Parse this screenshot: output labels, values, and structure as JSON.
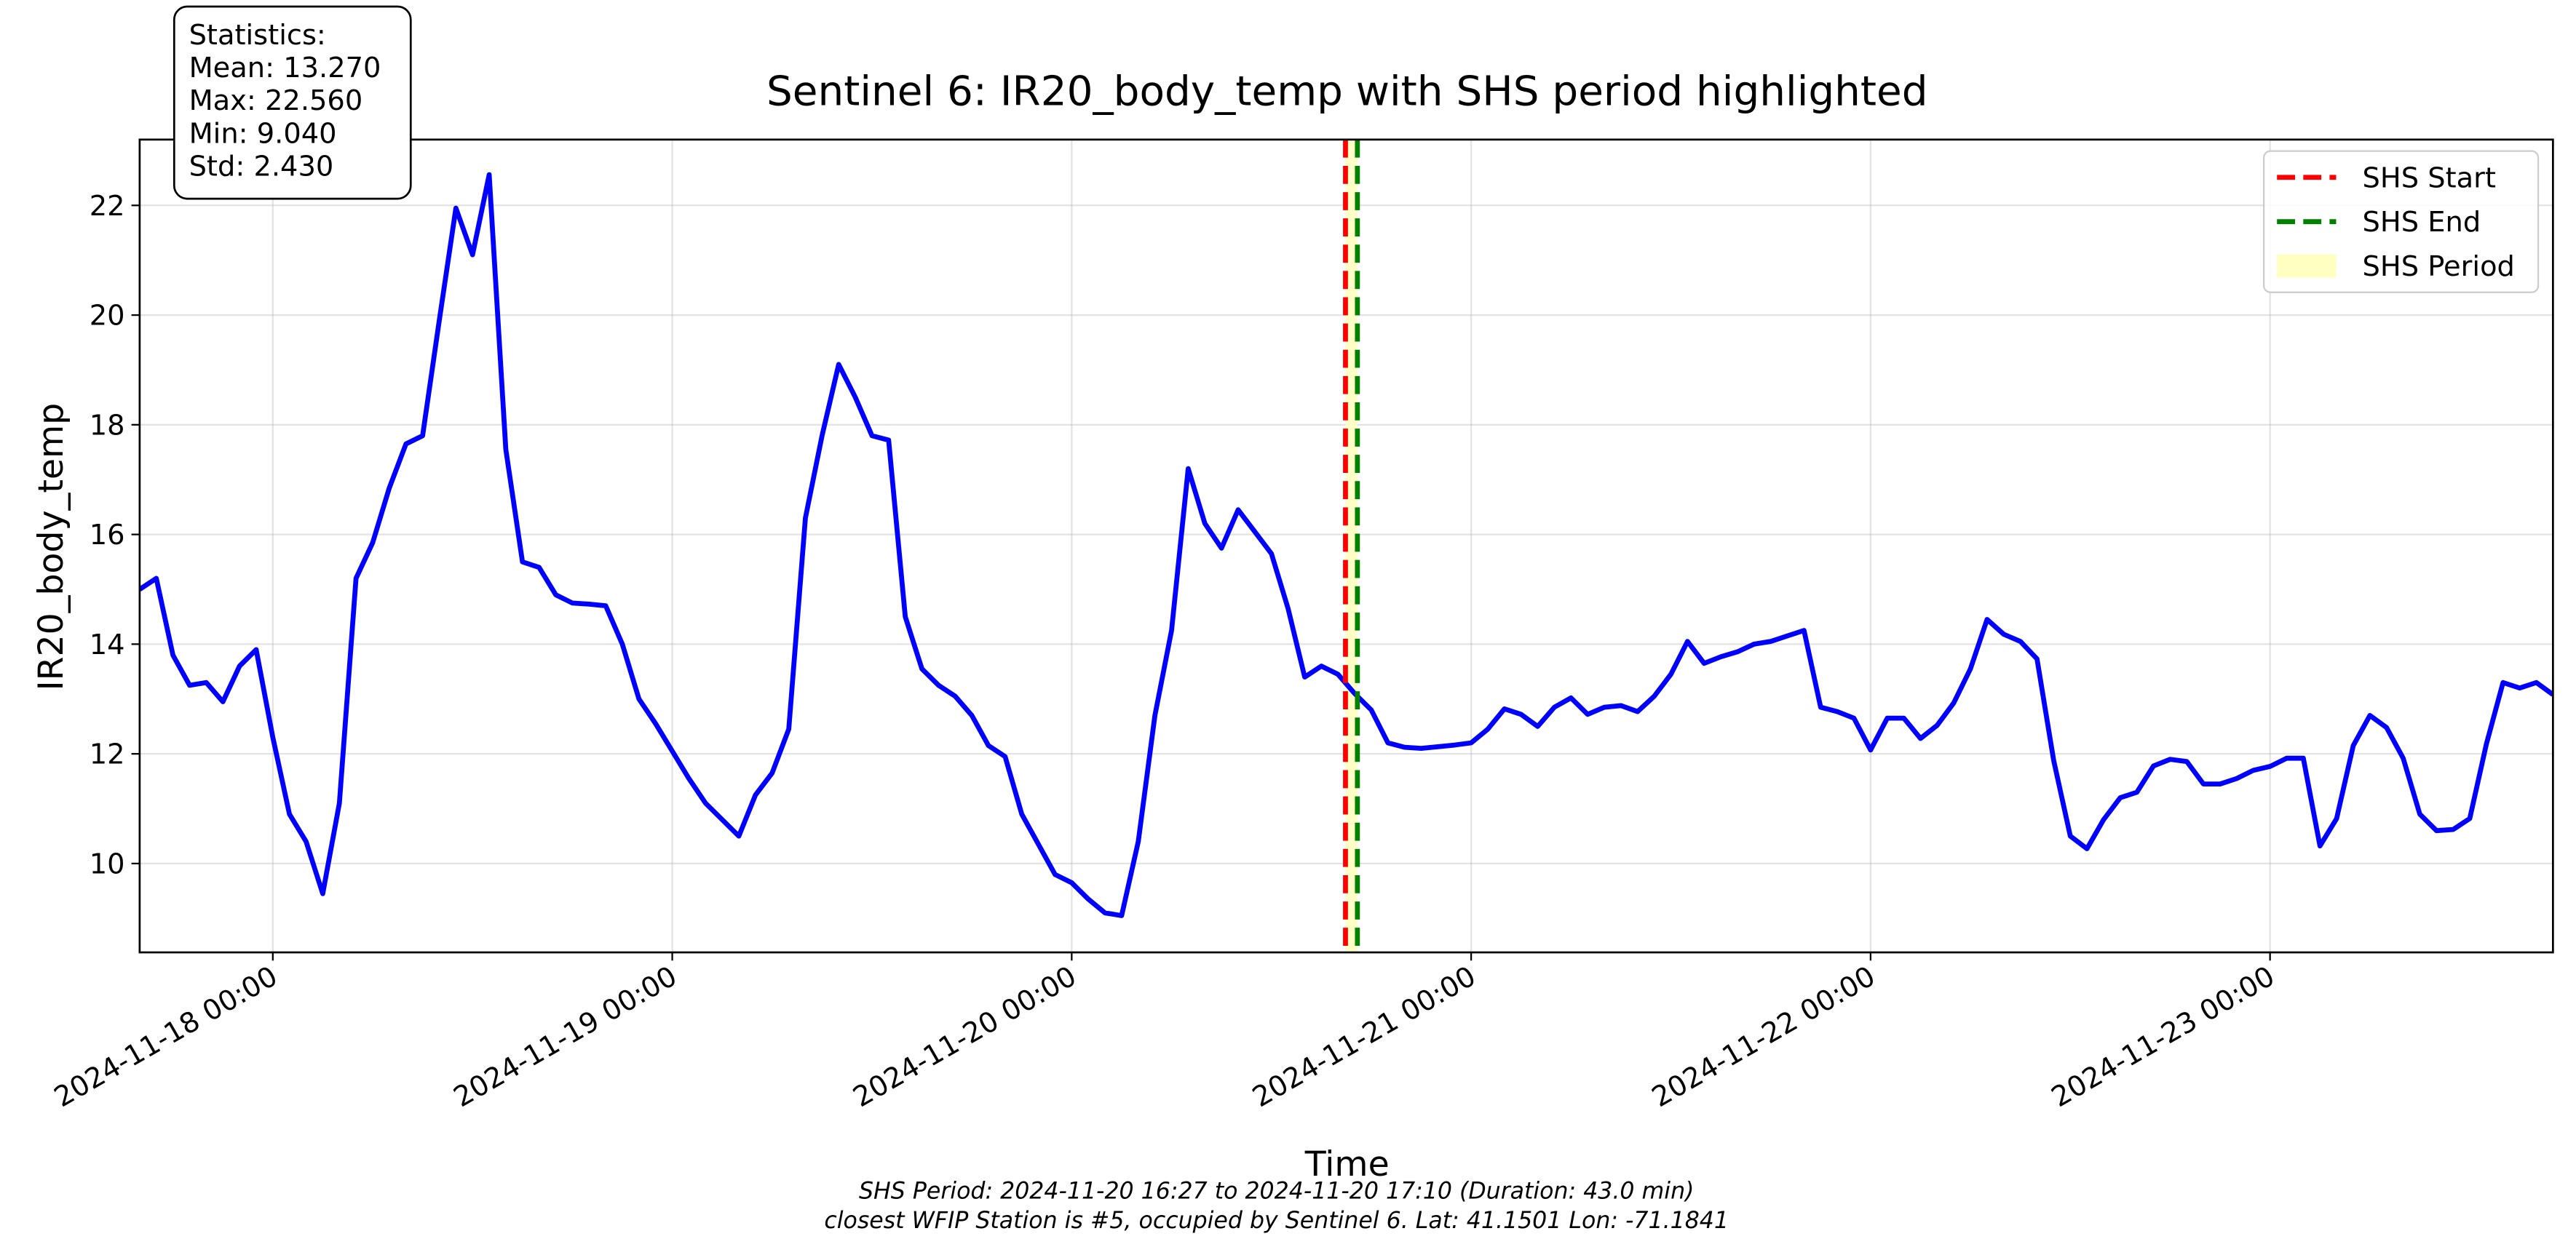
{
  "chart_data": {
    "type": "line",
    "title": "Sentinel 6: IR20_body_temp with SHS period highlighted",
    "xlabel": "Time",
    "ylabel": "IR20_body_temp",
    "xlim": [
      "2024-11-17 16:00",
      "2024-11-23 17:00"
    ],
    "ylim": [
      8.38,
      23.2
    ],
    "xticks": [
      "2024-11-18 00:00",
      "2024-11-19 00:00",
      "2024-11-20 00:00",
      "2024-11-21 00:00",
      "2024-11-22 00:00",
      "2024-11-23 00:00"
    ],
    "yticks": [
      10,
      12,
      14,
      16,
      18,
      20,
      22
    ],
    "grid": true,
    "legend": "upper right",
    "x": [
      "2024-11-17 16:00",
      "2024-11-17 17:00",
      "2024-11-17 18:00",
      "2024-11-17 19:00",
      "2024-11-17 20:00",
      "2024-11-17 21:00",
      "2024-11-17 22:00",
      "2024-11-17 23:00",
      "2024-11-18 00:00",
      "2024-11-18 01:00",
      "2024-11-18 02:00",
      "2024-11-18 03:00",
      "2024-11-18 04:00",
      "2024-11-18 05:00",
      "2024-11-18 06:00",
      "2024-11-18 07:00",
      "2024-11-18 08:00",
      "2024-11-18 09:00",
      "2024-11-18 10:00",
      "2024-11-18 11:00",
      "2024-11-18 12:00",
      "2024-11-18 13:00",
      "2024-11-18 14:00",
      "2024-11-18 15:00",
      "2024-11-18 16:00",
      "2024-11-18 17:00",
      "2024-11-18 18:00",
      "2024-11-18 19:00",
      "2024-11-18 20:00",
      "2024-11-18 21:00",
      "2024-11-18 22:00",
      "2024-11-18 23:00",
      "2024-11-19 00:00",
      "2024-11-19 01:00",
      "2024-11-19 02:00",
      "2024-11-19 03:00",
      "2024-11-19 04:00",
      "2024-11-19 05:00",
      "2024-11-19 06:00",
      "2024-11-19 07:00",
      "2024-11-19 08:00",
      "2024-11-19 09:00",
      "2024-11-19 10:00",
      "2024-11-19 11:00",
      "2024-11-19 12:00",
      "2024-11-19 13:00",
      "2024-11-19 14:00",
      "2024-11-19 15:00",
      "2024-11-19 16:00",
      "2024-11-19 17:00",
      "2024-11-19 18:00",
      "2024-11-19 19:00",
      "2024-11-19 20:00",
      "2024-11-19 21:00",
      "2024-11-19 22:00",
      "2024-11-19 23:00",
      "2024-11-20 00:00",
      "2024-11-20 01:00",
      "2024-11-20 02:00",
      "2024-11-20 03:00",
      "2024-11-20 04:00",
      "2024-11-20 05:00",
      "2024-11-20 06:00",
      "2024-11-20 07:00",
      "2024-11-20 08:00",
      "2024-11-20 09:00",
      "2024-11-20 10:00",
      "2024-11-20 11:00",
      "2024-11-20 12:00",
      "2024-11-20 13:00",
      "2024-11-20 14:00",
      "2024-11-20 15:00",
      "2024-11-20 16:00",
      "2024-11-20 17:00",
      "2024-11-20 18:00",
      "2024-11-20 19:00",
      "2024-11-20 20:00",
      "2024-11-20 21:00",
      "2024-11-20 22:00",
      "2024-11-20 23:00",
      "2024-11-21 00:00",
      "2024-11-21 01:00",
      "2024-11-21 02:00",
      "2024-11-21 03:00",
      "2024-11-21 04:00",
      "2024-11-21 05:00",
      "2024-11-21 06:00",
      "2024-11-21 07:00",
      "2024-11-21 08:00",
      "2024-11-21 09:00",
      "2024-11-21 10:00",
      "2024-11-21 11:00",
      "2024-11-21 12:00",
      "2024-11-21 13:00",
      "2024-11-21 14:00",
      "2024-11-21 15:00",
      "2024-11-21 16:00",
      "2024-11-21 17:00",
      "2024-11-21 18:00",
      "2024-11-21 19:00",
      "2024-11-21 20:00",
      "2024-11-21 21:00",
      "2024-11-21 22:00",
      "2024-11-21 23:00",
      "2024-11-22 00:00",
      "2024-11-22 01:00",
      "2024-11-22 02:00",
      "2024-11-22 03:00",
      "2024-11-22 04:00",
      "2024-11-22 05:00",
      "2024-11-22 06:00",
      "2024-11-22 07:00",
      "2024-11-22 08:00",
      "2024-11-22 09:00",
      "2024-11-22 10:00",
      "2024-11-22 11:00",
      "2024-11-22 12:00",
      "2024-11-22 13:00",
      "2024-11-22 14:00",
      "2024-11-22 15:00",
      "2024-11-22 16:00",
      "2024-11-22 17:00",
      "2024-11-22 18:00",
      "2024-11-22 19:00",
      "2024-11-22 20:00",
      "2024-11-22 21:00",
      "2024-11-22 22:00",
      "2024-11-22 23:00",
      "2024-11-23 00:00",
      "2024-11-23 01:00",
      "2024-11-23 02:00",
      "2024-11-23 03:00",
      "2024-11-23 04:00",
      "2024-11-23 05:00",
      "2024-11-23 06:00",
      "2024-11-23 07:00",
      "2024-11-23 08:00",
      "2024-11-23 09:00",
      "2024-11-23 10:00",
      "2024-11-23 11:00",
      "2024-11-23 12:00",
      "2024-11-23 13:00",
      "2024-11-23 14:00",
      "2024-11-23 15:00",
      "2024-11-23 16:00",
      "2024-11-23 17:00"
    ],
    "series": [
      {
        "color": "#0000ff",
        "values": [
          15.0,
          15.2,
          13.8,
          13.25,
          13.3,
          12.95,
          13.6,
          13.9,
          12.3,
          10.9,
          10.4,
          9.45,
          11.1,
          15.2,
          15.85,
          16.85,
          17.65,
          17.8,
          19.9,
          21.95,
          21.1,
          22.56,
          17.55,
          15.5,
          15.4,
          14.9,
          14.75,
          14.73,
          14.7,
          14.0,
          13.0,
          12.55,
          12.05,
          11.55,
          11.1,
          10.8,
          10.5,
          11.25,
          11.65,
          12.45,
          16.3,
          17.8,
          19.1,
          18.5,
          17.8,
          17.72,
          14.5,
          13.55,
          13.25,
          13.05,
          12.7,
          12.15,
          11.95,
          10.9,
          10.35,
          9.8,
          9.65,
          9.35,
          9.1,
          9.05,
          10.4,
          12.7,
          14.25,
          17.2,
          16.2,
          15.75,
          16.45,
          16.05,
          15.65,
          14.65,
          13.4,
          13.6,
          13.45,
          13.1,
          12.8,
          12.2,
          12.12,
          12.1,
          12.13,
          12.16,
          12.2,
          12.45,
          12.82,
          12.72,
          12.5,
          12.85,
          13.02,
          12.72,
          12.85,
          12.88,
          12.77,
          13.05,
          13.45,
          14.05,
          13.65,
          13.77,
          13.86,
          14.0,
          14.05,
          14.15,
          14.25,
          12.85,
          12.77,
          12.65,
          12.07,
          12.65,
          12.65,
          12.28,
          12.52,
          12.93,
          13.55,
          14.45,
          14.18,
          14.05,
          13.73,
          11.88,
          10.5,
          10.27,
          10.8,
          11.2,
          11.3,
          11.78,
          11.9,
          11.86,
          11.45,
          11.45,
          11.55,
          11.7,
          11.77,
          11.92,
          11.92,
          10.32,
          10.82,
          12.15,
          12.7,
          12.48,
          11.92,
          10.9,
          10.6,
          10.62,
          10.82,
          12.18,
          13.3,
          13.2,
          13.3,
          13.08
        ]
      }
    ],
    "vlines": [
      {
        "name": "SHS Start",
        "color": "#ff0000",
        "x": "2024-11-20 16:27"
      },
      {
        "name": "SHS End",
        "color": "#008000",
        "x": "2024-11-20 17:10"
      }
    ],
    "span": {
      "name": "SHS Period",
      "color": "#ffffc0",
      "x": [
        "2024-11-20 16:27",
        "2024-11-20 17:10"
      ]
    },
    "stats_box": [
      "Statistics:",
      "Mean: 13.270",
      "Max: 22.560",
      "Min: 9.040",
      "Std: 2.430"
    ],
    "footnotes": [
      "SHS Period: 2024-11-20 16:27 to 2024-11-20 17:10 (Duration: 43.0 min)",
      "closest WFIP Station is #5, occupied by Sentinel 6. Lat: 41.1501 Lon: -71.1841"
    ]
  }
}
